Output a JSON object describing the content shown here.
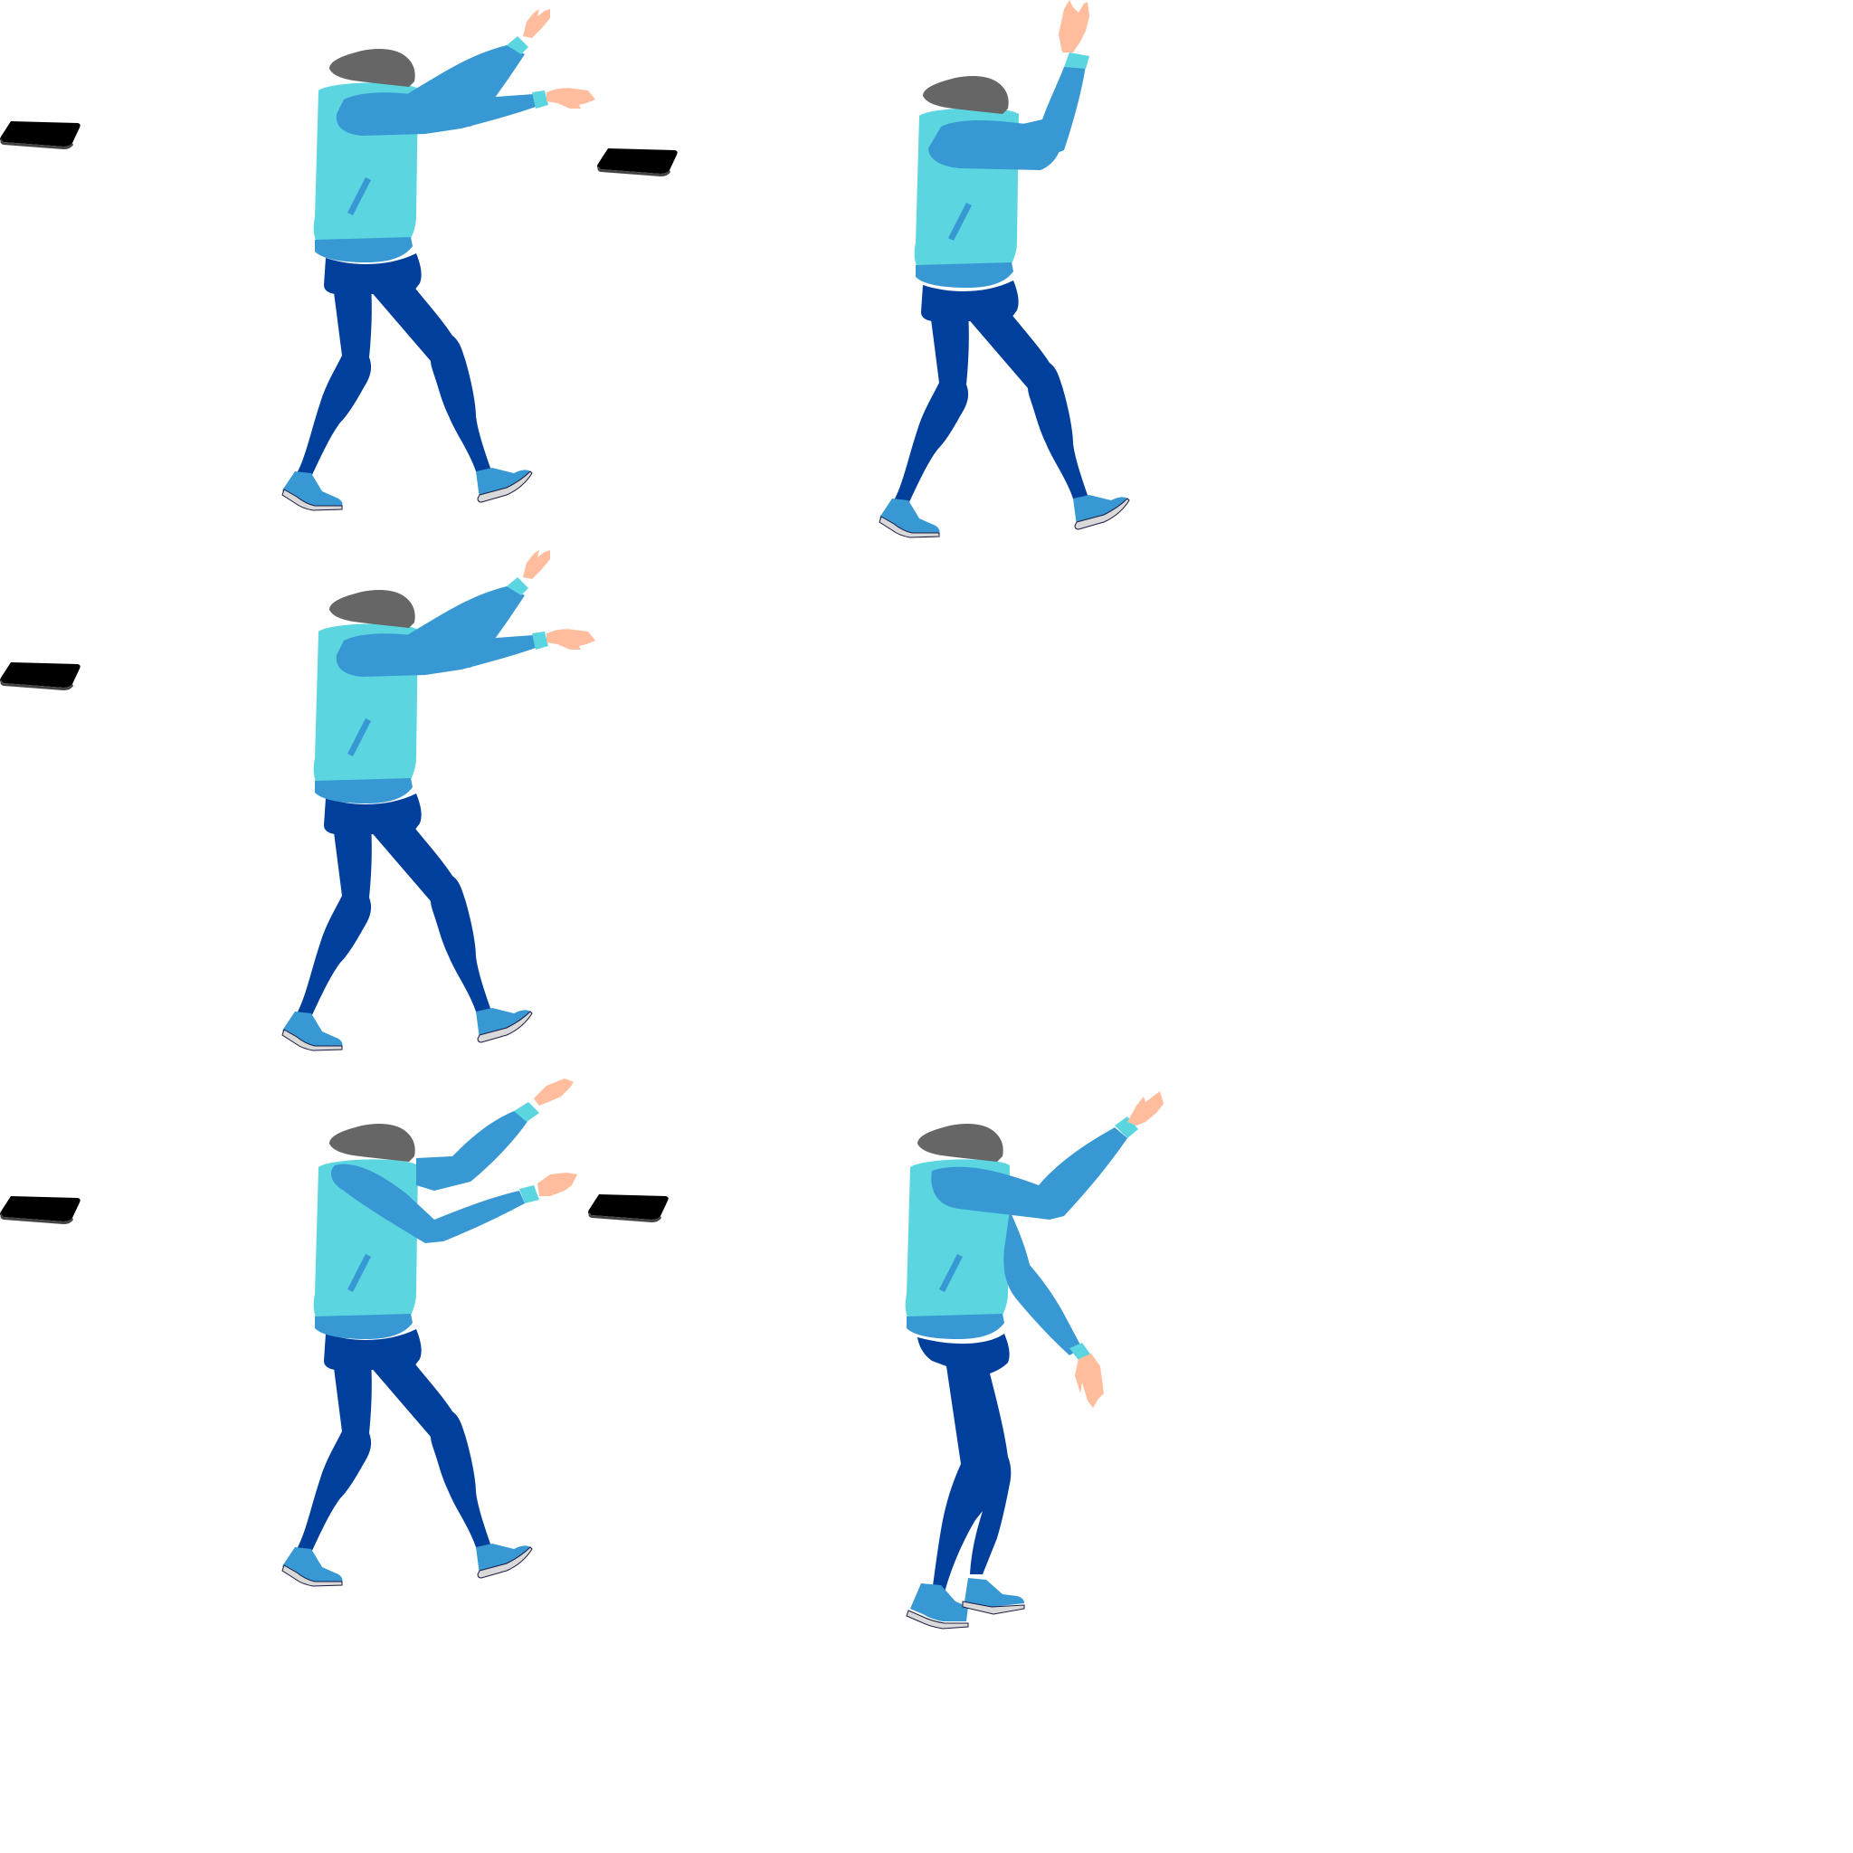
{
  "sprite_sheet": {
    "background": "#ffffff",
    "colors": {
      "hair": "#666666",
      "sweater": "#5bd6e0",
      "sleeve": "#3898d4",
      "cuff": "#5bd6e0",
      "skin": "#ffbd9d",
      "pants": "#003f9b",
      "shoe": "#3898d4",
      "sole": "#d9d9d9",
      "outline": "#1a1a40",
      "phone": "#000000",
      "phone_edge": "#444444"
    },
    "frames": [
      {
        "pose": "reach-forward",
        "arms": "forward",
        "phones": 2
      },
      {
        "pose": "arm-raised",
        "arms": "up",
        "phones": 0
      },
      {
        "pose": "reach-forward",
        "arms": "forward",
        "phones": 1
      },
      {
        "pose": "catch",
        "arms": "forward-split",
        "phones": 2
      },
      {
        "pose": "wave",
        "arms": "up-down",
        "phones": 0
      }
    ]
  }
}
